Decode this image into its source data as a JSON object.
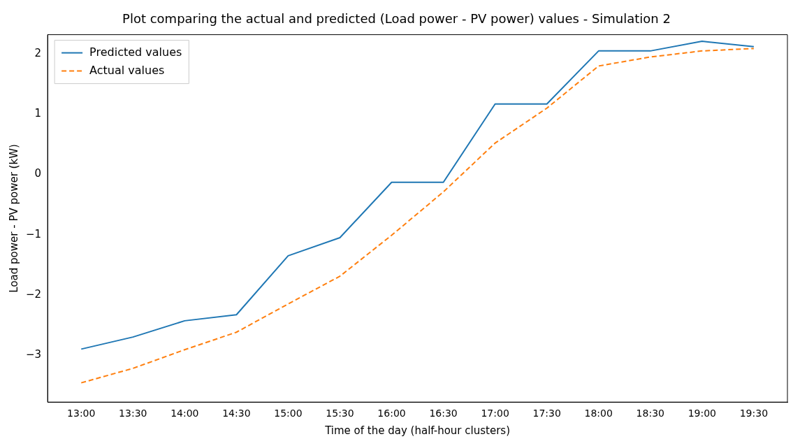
{
  "chart_data": {
    "type": "line",
    "title": "Plot comparing the actual and predicted (Load power - PV power) values - Simulation 2",
    "xlabel": "Time of the day (half-hour clusters)",
    "ylabel": "Load power - PV power (kW)",
    "categories": [
      "13:00",
      "13:30",
      "14:00",
      "14:30",
      "15:00",
      "15:30",
      "16:00",
      "16:30",
      "17:00",
      "17:30",
      "18:00",
      "18:30",
      "19:00",
      "19:30"
    ],
    "series": [
      {
        "name": "Predicted values",
        "color": "#1f77b4",
        "line_style": "solid",
        "values": [
          -2.9,
          -2.7,
          -2.43,
          -2.33,
          -1.35,
          -1.05,
          -0.13,
          -0.13,
          1.17,
          1.17,
          2.05,
          2.05,
          2.21,
          2.12
        ]
      },
      {
        "name": "Actual values",
        "color": "#ff7f0e",
        "line_style": "dashed",
        "values": [
          -3.46,
          -3.22,
          -2.91,
          -2.62,
          -2.15,
          -1.69,
          -1.01,
          -0.29,
          0.52,
          1.1,
          1.8,
          1.95,
          2.05,
          2.09
        ]
      }
    ],
    "ylim": [
      -3.78,
      2.32
    ],
    "yticks": [
      -3,
      -2,
      -1,
      0,
      1,
      2
    ],
    "grid": false,
    "legend": "top left",
    "marker": "none"
  }
}
